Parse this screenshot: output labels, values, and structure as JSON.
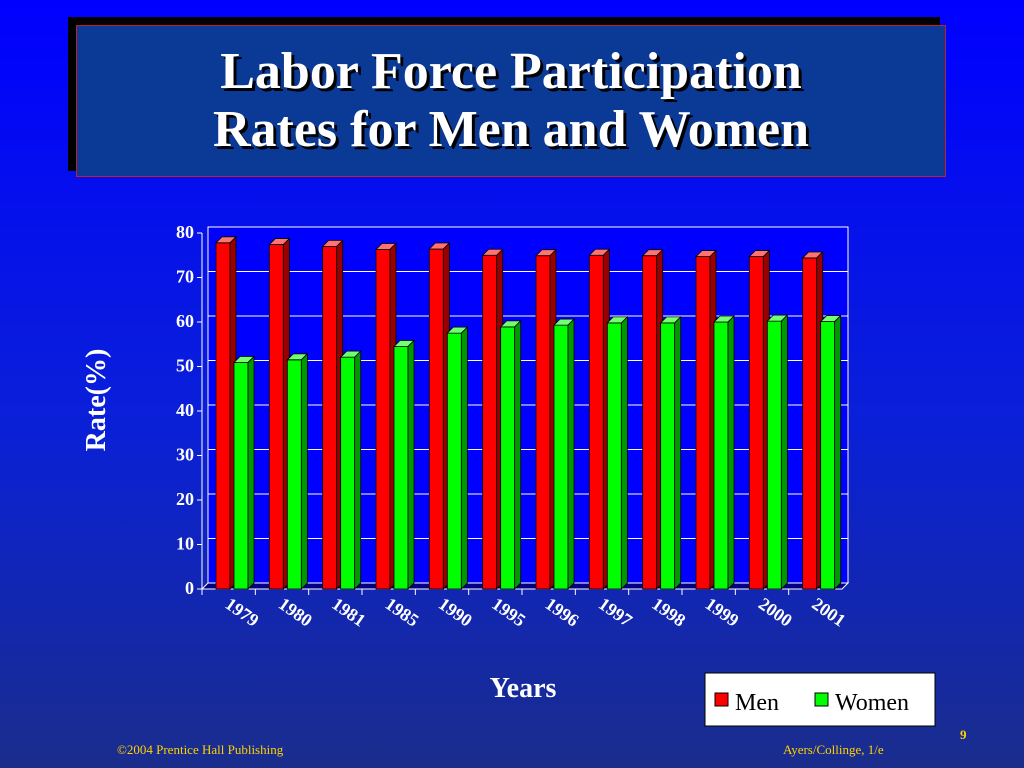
{
  "slide": {
    "title": "Labor Force Participation\nRates for Men and Women",
    "footer_left": "©2004 Prentice Hall Publishing",
    "footer_right": "Ayers/Collinge, 1/e",
    "page_number": "9"
  },
  "colors": {
    "men": "#ff0000",
    "women": "#00ff00",
    "plot_background": "#0000ff",
    "gridline": "#ffffff",
    "text": "#ffffff",
    "footer_text": "#ffd200"
  },
  "chart_data": {
    "type": "bar",
    "title": "",
    "xlabel": "Years",
    "ylabel": "Rate(%)",
    "categories": [
      "1979",
      "1980",
      "1981",
      "1985",
      "1990",
      "1995",
      "1996",
      "1997",
      "1998",
      "1999",
      "2000",
      "2001"
    ],
    "series": [
      {
        "name": "Men",
        "values": [
          77.8,
          77.4,
          77.0,
          76.3,
          76.4,
          75.0,
          74.9,
          75.0,
          74.9,
          74.7,
          74.7,
          74.4
        ]
      },
      {
        "name": "Women",
        "values": [
          50.9,
          51.5,
          52.1,
          54.5,
          57.5,
          58.9,
          59.3,
          59.8,
          59.8,
          60.0,
          60.2,
          60.1
        ]
      }
    ],
    "ylim": [
      0,
      80
    ],
    "yticks": [
      0,
      10,
      20,
      30,
      40,
      50,
      60,
      70,
      80
    ],
    "grid": true,
    "legend": "bottom-right",
    "style": "3d"
  }
}
